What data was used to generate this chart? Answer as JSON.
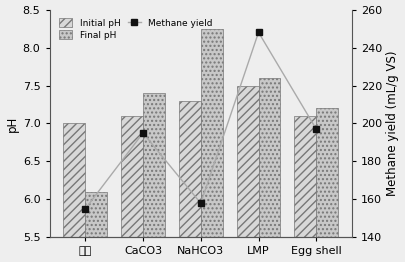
{
  "categories": [
    "对照",
    "CaCO3",
    "NaHCO3",
    "LMP",
    "Egg shell"
  ],
  "initial_pH": [
    7.0,
    7.1,
    7.3,
    7.5,
    7.1
  ],
  "final_pH": [
    6.1,
    7.4,
    8.25,
    7.6,
    7.2
  ],
  "methane_yield": [
    155,
    195,
    158,
    248,
    197
  ],
  "ylim_left": [
    5.5,
    8.5
  ],
  "ylim_right": [
    140,
    260
  ],
  "ylabel_left": "pH",
  "ylabel_right": "Methane yield (mL/g VS)",
  "legend_labels": [
    "Initial pH",
    "Final pH",
    "Methane yield"
  ],
  "bar_width": 0.38,
  "initial_hatch": "////",
  "final_hatch": "....",
  "line_color": "#aaaaaa",
  "marker_color": "#111111",
  "background_color": "#eeeeee",
  "yticks_left": [
    5.5,
    6.0,
    6.5,
    7.0,
    7.5,
    8.0,
    8.5
  ],
  "yticks_right": [
    140,
    160,
    180,
    200,
    220,
    240,
    260
  ]
}
